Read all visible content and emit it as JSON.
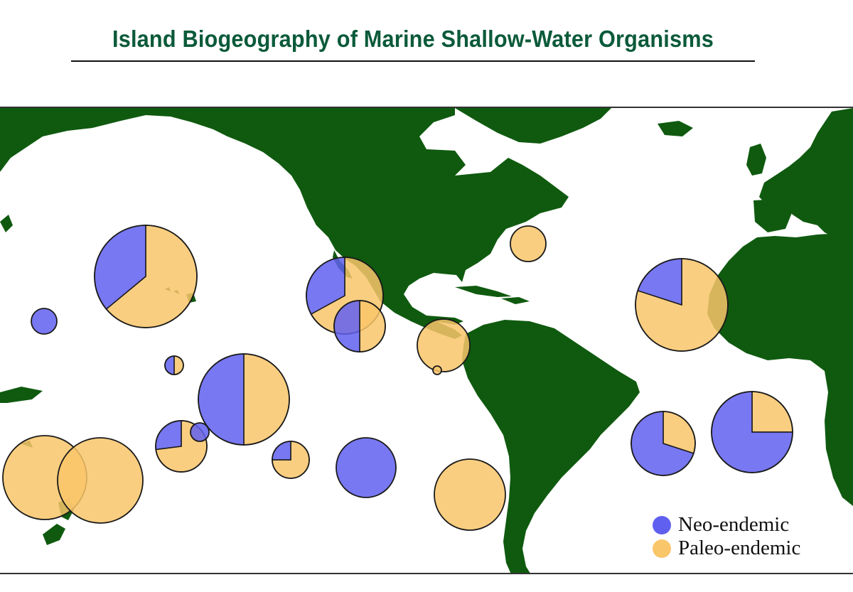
{
  "title": "Island Biogeography of Marine Shallow-Water Organisms",
  "colors": {
    "land": "#0f5a0f",
    "neo": "#6060f0",
    "paleo": "#f9c66a",
    "outline": "#1a1a1a"
  },
  "legend": {
    "neo_label": "Neo-endemic",
    "paleo_label": "Paleo-endemic"
  },
  "sites": [
    {
      "id": "hawaii",
      "neo": 0.36,
      "paleo": 0.64
    },
    {
      "id": "wake",
      "neo": 1.0,
      "paleo": 0.0
    },
    {
      "id": "marshall",
      "neo": 0.5,
      "paleo": 0.5
    },
    {
      "id": "marquesas",
      "neo": 0.5,
      "paleo": 0.5
    },
    {
      "id": "samoa",
      "neo": 0.27,
      "paleo": 0.73
    },
    {
      "id": "cook",
      "neo": 1.0,
      "paleo": 0.0
    },
    {
      "id": "austral",
      "neo": 0.25,
      "paleo": 0.75
    },
    {
      "id": "easter",
      "neo": 1.0,
      "paleo": 0.0
    },
    {
      "id": "new-caledonia",
      "neo": 0.0,
      "paleo": 1.0
    },
    {
      "id": "lord-howe",
      "neo": 0.0,
      "paleo": 1.0
    },
    {
      "id": "gulf-california",
      "neo": 0.33,
      "paleo": 0.67
    },
    {
      "id": "revillagigedo",
      "neo": 0.5,
      "paleo": 0.5
    },
    {
      "id": "galapagos",
      "neo": 0.0,
      "paleo": 1.0
    },
    {
      "id": "cocos",
      "neo": 0.0,
      "paleo": 1.0
    },
    {
      "id": "juan-fernandez",
      "neo": 0.0,
      "paleo": 1.0
    },
    {
      "id": "bermuda",
      "neo": 0.0,
      "paleo": 1.0
    },
    {
      "id": "canaries",
      "neo": 0.2,
      "paleo": 0.8
    },
    {
      "id": "st-paul-rocks",
      "neo": 0.7,
      "paleo": 0.3
    },
    {
      "id": "st-helena",
      "neo": 0.75,
      "paleo": 0.25
    }
  ]
}
